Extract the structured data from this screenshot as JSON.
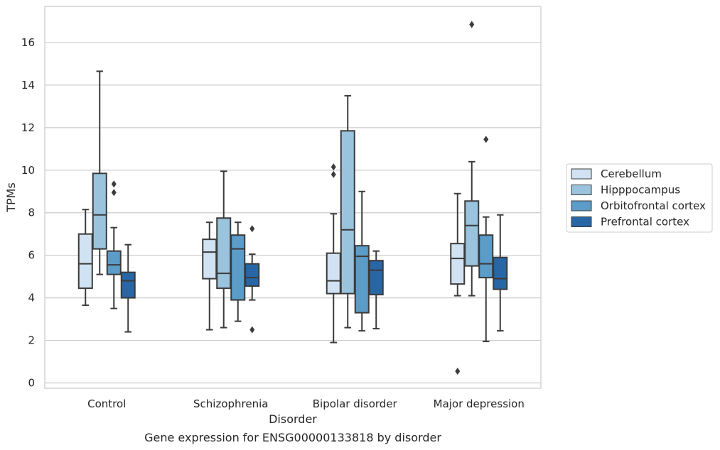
{
  "chart_data": {
    "type": "boxplot",
    "title": "Gene expression for ENSG00000133818 by disorder",
    "xlabel": "Disorder",
    "ylabel": "TPMs",
    "ylim": [
      -0.25,
      17.7
    ],
    "yticks": [
      0,
      2,
      4,
      6,
      8,
      10,
      12,
      14,
      16
    ],
    "grid": "horizontal",
    "legend_position": "right",
    "categories": [
      "Control",
      "Schizophrenia",
      "Bipolar disorder",
      "Major depression"
    ],
    "series": [
      {
        "name": "Cerebellum",
        "color": "#d1e2f2",
        "boxes": [
          {
            "whislo": 3.65,
            "q1": 4.45,
            "med": 5.6,
            "q3": 7.0,
            "whishi": 8.15,
            "fliers": []
          },
          {
            "whislo": 2.5,
            "q1": 4.9,
            "med": 6.15,
            "q3": 6.75,
            "whishi": 7.55,
            "fliers": []
          },
          {
            "whislo": 1.9,
            "q1": 4.2,
            "med": 4.8,
            "q3": 6.1,
            "whishi": 7.95,
            "fliers": [
              9.8,
              10.15
            ]
          },
          {
            "whislo": 4.1,
            "q1": 4.65,
            "med": 5.85,
            "q3": 6.55,
            "whishi": 8.9,
            "fliers": [
              0.55
            ]
          }
        ]
      },
      {
        "name": "Hipppocampus",
        "color": "#9ac3de",
        "boxes": [
          {
            "whislo": 5.1,
            "q1": 6.3,
            "med": 7.9,
            "q3": 9.85,
            "whishi": 14.65,
            "fliers": []
          },
          {
            "whislo": 2.6,
            "q1": 4.45,
            "med": 5.15,
            "q3": 7.75,
            "whishi": 9.95,
            "fliers": []
          },
          {
            "whislo": 2.6,
            "q1": 4.2,
            "med": 7.2,
            "q3": 11.85,
            "whishi": 13.5,
            "fliers": []
          },
          {
            "whislo": 4.1,
            "q1": 5.5,
            "med": 7.4,
            "q3": 8.55,
            "whishi": 10.4,
            "fliers": [
              16.85
            ]
          }
        ]
      },
      {
        "name": "Orbitofrontal cortex",
        "color": "#5b9cc8",
        "boxes": [
          {
            "whislo": 3.5,
            "q1": 5.1,
            "med": 5.55,
            "q3": 6.2,
            "whishi": 7.3,
            "fliers": [
              8.95,
              9.35
            ]
          },
          {
            "whislo": 2.9,
            "q1": 3.9,
            "med": 6.3,
            "q3": 6.95,
            "whishi": 7.55,
            "fliers": []
          },
          {
            "whislo": 2.45,
            "q1": 3.3,
            "med": 5.95,
            "q3": 6.45,
            "whishi": 9.0,
            "fliers": []
          },
          {
            "whislo": 1.95,
            "q1": 4.95,
            "med": 5.6,
            "q3": 6.95,
            "whishi": 7.8,
            "fliers": [
              11.45
            ]
          }
        ]
      },
      {
        "name": "Prefrontal cortex",
        "color": "#2866a6",
        "boxes": [
          {
            "whislo": 2.4,
            "q1": 4.0,
            "med": 4.8,
            "q3": 5.2,
            "whishi": 6.5,
            "fliers": []
          },
          {
            "whislo": 3.9,
            "q1": 4.55,
            "med": 4.95,
            "q3": 5.6,
            "whishi": 6.05,
            "fliers": [
              2.5,
              7.25
            ]
          },
          {
            "whislo": 2.55,
            "q1": 4.15,
            "med": 5.3,
            "q3": 5.75,
            "whishi": 6.2,
            "fliers": []
          },
          {
            "whislo": 2.45,
            "q1": 4.4,
            "med": 4.9,
            "q3": 5.9,
            "whishi": 7.9,
            "fliers": []
          }
        ]
      }
    ]
  }
}
